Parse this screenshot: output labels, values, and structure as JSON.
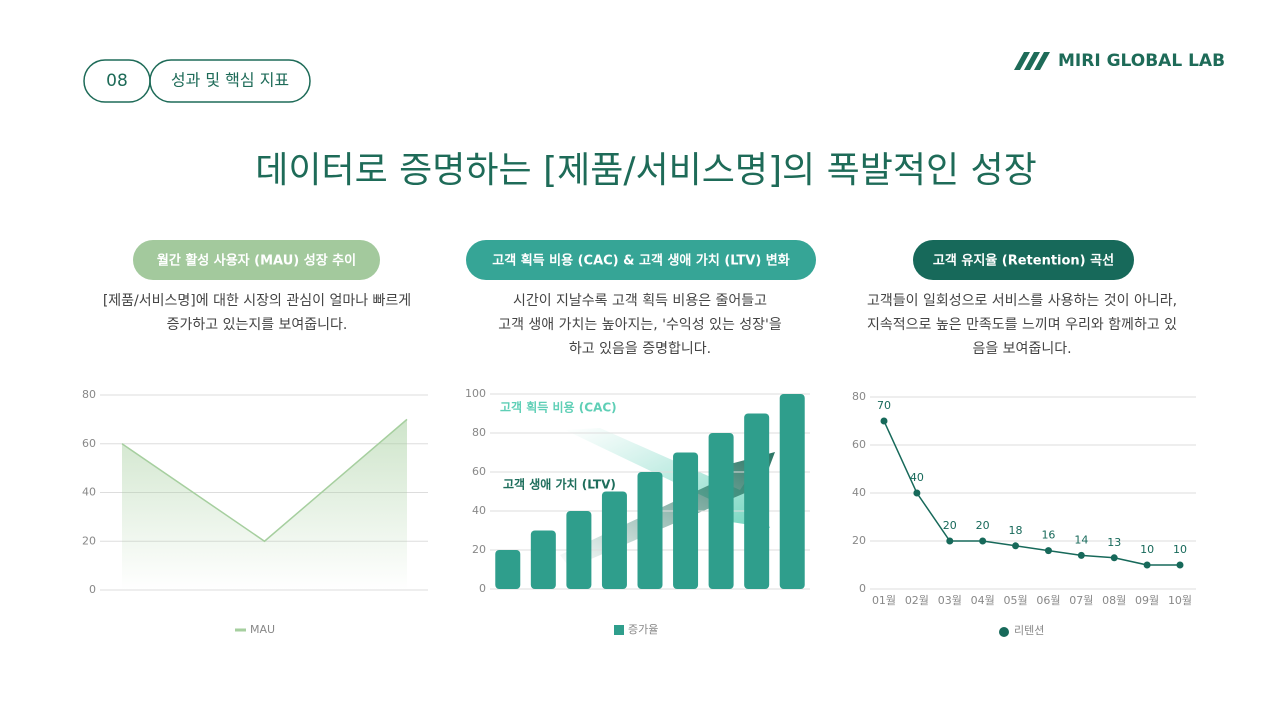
{
  "header": {
    "page_number": "08",
    "section": "성과 및 핵심 지표",
    "brand": "MIRI GLOBAL LAB"
  },
  "title": "데이터로 증명하는 [제품/서비스명]의 폭발적인 성장",
  "chart_data": [
    {
      "type": "area",
      "title": "월간 활성 사용자 (MAU) 성장 추이",
      "description": [
        "[제품/서비스명]에 대한 시장의 관심이 얼마나 빠르게",
        "증가하고 있는지를 보여줍니다."
      ],
      "categories": [
        null,
        null,
        null
      ],
      "series": [
        {
          "name": "MAU",
          "color": "#a6cf9f",
          "values": [
            60,
            20,
            70
          ]
        }
      ],
      "ylim": [
        0,
        80
      ],
      "yticks": [
        0,
        20,
        40,
        60,
        80
      ],
      "grid": true
    },
    {
      "type": "bar",
      "title": "고객 획득 비용 (CAC) & 고객 생애 가치 (LTV) 변화",
      "description": [
        "시간이 지날수록 고객 획득 비용은 줄어들고",
        "고객 생애 가치는 높아지는, '수익성 있는 성장'을",
        "하고 있음을 증명합니다."
      ],
      "annotations": [
        "고객 획득 비용 (CAC)",
        "고객 생애 가치 (LTV)"
      ],
      "categories": [
        null,
        null,
        null,
        null,
        null,
        null,
        null,
        null,
        null
      ],
      "series": [
        {
          "name": "증가율",
          "color": "#2f9e8c",
          "values": [
            20,
            30,
            40,
            50,
            60,
            70,
            80,
            90,
            100
          ]
        }
      ],
      "ylim": [
        0,
        100
      ],
      "yticks": [
        0,
        20,
        40,
        60,
        80,
        100
      ],
      "grid": true
    },
    {
      "type": "line",
      "title": "고객 유지율 (Retention) 곡선",
      "description": [
        "고객들이 일회성으로 서비스를 사용하는 것이 아니라,",
        "지속적으로 높은 만족도를 느끼며 우리와 함께하고 있",
        "음을 보여줍니다."
      ],
      "categories": [
        "01월",
        "02월",
        "03월",
        "04월",
        "05월",
        "06월",
        "07월",
        "08월",
        "09월",
        "10월"
      ],
      "series": [
        {
          "name": "리텐션",
          "color": "#17695a",
          "values": [
            70,
            40,
            20,
            20,
            18,
            16,
            14,
            13,
            10,
            10
          ]
        }
      ],
      "ylim": [
        0,
        80
      ],
      "yticks": [
        0,
        20,
        40,
        60,
        80
      ],
      "grid": true
    }
  ]
}
